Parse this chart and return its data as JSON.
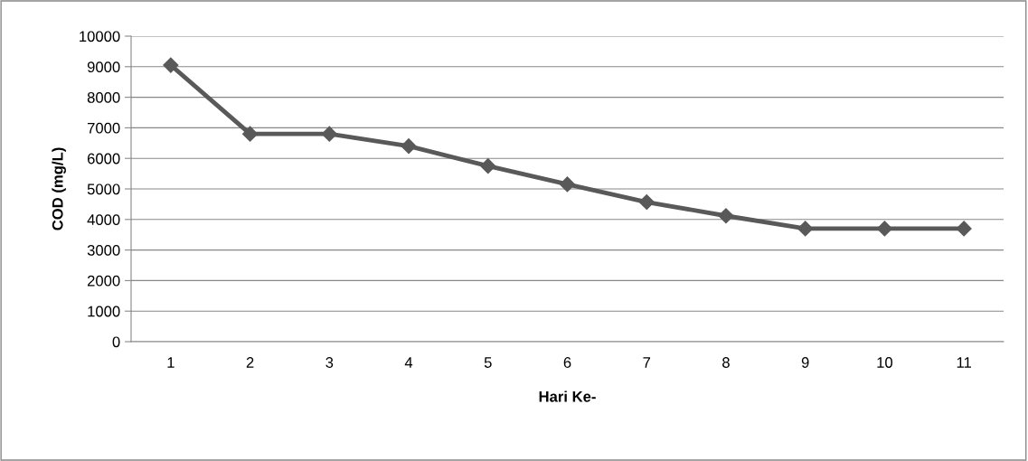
{
  "chart_data": {
    "type": "line",
    "xlabel": "Hari Ke-",
    "ylabel": "COD (mg/L)",
    "categories": [
      "1",
      "2",
      "3",
      "4",
      "5",
      "6",
      "7",
      "8",
      "9",
      "10",
      "11"
    ],
    "series": [
      {
        "color": "#595959",
        "values": [
          9050,
          6800,
          6800,
          6400,
          5750,
          5150,
          4570,
          4120,
          3700,
          3700,
          3700
        ]
      }
    ],
    "ylim": [
      0,
      10000
    ],
    "yticks": [
      0,
      1000,
      2000,
      3000,
      4000,
      5000,
      6000,
      7000,
      8000,
      9000,
      10000
    ],
    "grid": "y",
    "legend": false,
    "marker": "diamond",
    "line_style": "solid"
  }
}
